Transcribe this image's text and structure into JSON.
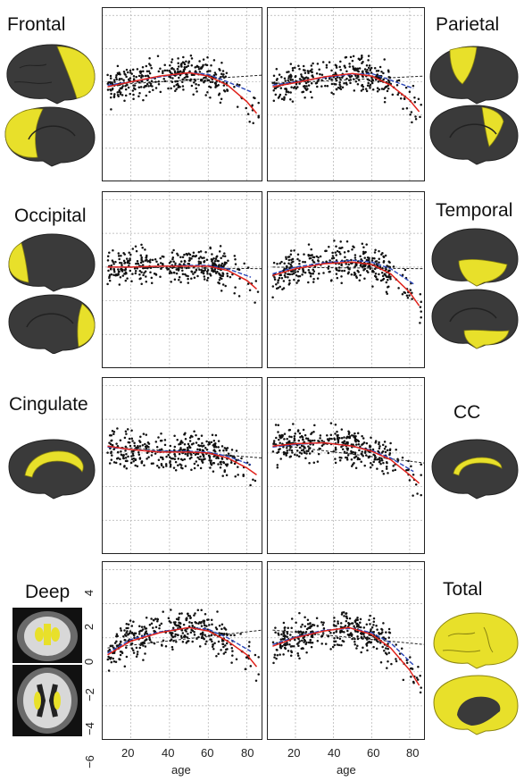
{
  "figure": {
    "regions": [
      {
        "id": "frontal",
        "label": "Frontal",
        "side": "left"
      },
      {
        "id": "parietal",
        "label": "Parietal",
        "side": "right"
      },
      {
        "id": "occipital",
        "label": "Occipital",
        "side": "left"
      },
      {
        "id": "temporal",
        "label": "Temporal",
        "side": "right"
      },
      {
        "id": "cingulate",
        "label": "Cingulate",
        "side": "left"
      },
      {
        "id": "cc",
        "label": "CC",
        "side": "right"
      },
      {
        "id": "deep",
        "label": "Deep",
        "side": "left"
      },
      {
        "id": "total",
        "label": "Total",
        "side": "right"
      }
    ],
    "colors": {
      "brain_dark": "#3a3a3a",
      "brain_highlight": "#e8e02a",
      "fit_red": "#e0231c",
      "fit_blue": "#2b46b8",
      "fit_linear": "#222222",
      "points": "#111111",
      "grid": "#b0b0b0"
    }
  },
  "chart_data": {
    "type": "scatter",
    "xlabel": "age",
    "ylabel": "",
    "xlim": [
      5,
      88
    ],
    "ylim": [
      -6,
      4.5
    ],
    "xticks": [
      "20",
      "40",
      "60",
      "80"
    ],
    "yticks": [
      "4",
      "2",
      "0",
      "−2",
      "−4",
      "−6"
    ],
    "grid": true,
    "panels": [
      {
        "region": "Frontal",
        "col": "left",
        "row": 1,
        "fit_red": [
          [
            8,
            -0.3
          ],
          [
            20,
            0.0
          ],
          [
            35,
            0.35
          ],
          [
            50,
            0.55
          ],
          [
            60,
            0.35
          ],
          [
            70,
            -0.2
          ],
          [
            80,
            -1.2
          ],
          [
            85,
            -1.9
          ]
        ],
        "fit_blue": [
          [
            8,
            -0.2
          ],
          [
            20,
            0.0
          ],
          [
            35,
            0.3
          ],
          [
            50,
            0.55
          ],
          [
            60,
            0.45
          ],
          [
            70,
            0.0
          ],
          [
            82,
            -0.6
          ]
        ],
        "fit_linear": [
          [
            8,
            -0.2
          ],
          [
            88,
            0.4
          ]
        ]
      },
      {
        "region": "Parietal",
        "col": "right",
        "row": 1,
        "fit_red": [
          [
            8,
            -0.3
          ],
          [
            20,
            -0.05
          ],
          [
            35,
            0.3
          ],
          [
            50,
            0.5
          ],
          [
            60,
            0.35
          ],
          [
            70,
            -0.2
          ],
          [
            80,
            -1.1
          ],
          [
            85,
            -1.8
          ]
        ],
        "fit_blue": [
          [
            8,
            -0.2
          ],
          [
            20,
            0.0
          ],
          [
            35,
            0.25
          ],
          [
            50,
            0.45
          ],
          [
            60,
            0.5
          ],
          [
            70,
            0.1
          ],
          [
            82,
            -0.4
          ]
        ],
        "fit_linear": [
          [
            8,
            -0.1
          ],
          [
            88,
            0.35
          ]
        ]
      },
      {
        "region": "Occipital",
        "col": "left",
        "row": 2,
        "fit_red": [
          [
            8,
            0.0
          ],
          [
            20,
            0.0
          ],
          [
            35,
            0.05
          ],
          [
            50,
            0.05
          ],
          [
            60,
            0.05
          ],
          [
            70,
            -0.2
          ],
          [
            80,
            -0.8
          ],
          [
            85,
            -1.3
          ]
        ],
        "fit_blue": [
          [
            8,
            0.0
          ],
          [
            20,
            0.0
          ],
          [
            35,
            0.05
          ],
          [
            50,
            0.1
          ],
          [
            60,
            0.1
          ],
          [
            70,
            -0.1
          ],
          [
            82,
            -0.6
          ]
        ],
        "fit_linear": [
          [
            8,
            0.0
          ],
          [
            88,
            -0.1
          ]
        ]
      },
      {
        "region": "Temporal",
        "col": "right",
        "row": 2,
        "fit_red": [
          [
            8,
            -0.5
          ],
          [
            20,
            -0.1
          ],
          [
            35,
            0.2
          ],
          [
            50,
            0.3
          ],
          [
            60,
            0.15
          ],
          [
            70,
            -0.4
          ],
          [
            80,
            -1.5
          ],
          [
            85,
            -2.3
          ]
        ],
        "fit_blue": [
          [
            8,
            -0.4
          ],
          [
            20,
            0.0
          ],
          [
            35,
            0.25
          ],
          [
            50,
            0.4
          ],
          [
            60,
            0.3
          ],
          [
            70,
            -0.1
          ],
          [
            82,
            -1.0
          ]
        ],
        "fit_linear": [
          [
            8,
            0.0
          ],
          [
            88,
            -0.1
          ]
        ]
      },
      {
        "region": "Cingulate",
        "col": "left",
        "row": 3,
        "fit_red": [
          [
            8,
            0.4
          ],
          [
            20,
            0.2
          ],
          [
            35,
            0.05
          ],
          [
            50,
            0.05
          ],
          [
            60,
            0.0
          ],
          [
            70,
            -0.3
          ],
          [
            80,
            -0.9
          ],
          [
            85,
            -1.3
          ]
        ],
        "fit_blue": [
          [
            8,
            0.35
          ],
          [
            20,
            0.2
          ],
          [
            35,
            0.1
          ],
          [
            50,
            0.1
          ],
          [
            60,
            0.05
          ],
          [
            70,
            -0.2
          ],
          [
            82,
            -0.7
          ]
        ],
        "fit_linear": [
          [
            8,
            0.4
          ],
          [
            88,
            -0.3
          ]
        ]
      },
      {
        "region": "CC",
        "col": "right",
        "row": 3,
        "fit_red": [
          [
            8,
            0.4
          ],
          [
            20,
            0.55
          ],
          [
            35,
            0.6
          ],
          [
            50,
            0.4
          ],
          [
            60,
            0.1
          ],
          [
            70,
            -0.4
          ],
          [
            80,
            -1.3
          ],
          [
            85,
            -1.8
          ]
        ],
        "fit_blue": [
          [
            8,
            0.35
          ],
          [
            20,
            0.5
          ],
          [
            35,
            0.6
          ],
          [
            50,
            0.4
          ],
          [
            60,
            0.15
          ],
          [
            70,
            -0.3
          ],
          [
            82,
            -1.1
          ]
        ],
        "fit_linear": [
          [
            8,
            0.5
          ],
          [
            88,
            -0.6
          ]
        ]
      },
      {
        "region": "Deep",
        "col": "left",
        "row": 4,
        "fit_red": [
          [
            8,
            -1.0
          ],
          [
            20,
            -0.2
          ],
          [
            35,
            0.3
          ],
          [
            50,
            0.6
          ],
          [
            60,
            0.4
          ],
          [
            70,
            -0.2
          ],
          [
            80,
            -1.0
          ],
          [
            85,
            -1.7
          ]
        ],
        "fit_blue": [
          [
            8,
            -0.9
          ],
          [
            20,
            -0.1
          ],
          [
            35,
            0.35
          ],
          [
            50,
            0.6
          ],
          [
            60,
            0.5
          ],
          [
            70,
            0.0
          ],
          [
            82,
            -0.8
          ]
        ],
        "fit_linear": [
          [
            8,
            -0.6
          ],
          [
            88,
            0.45
          ]
        ]
      },
      {
        "region": "Total",
        "col": "right",
        "row": 4,
        "fit_red": [
          [
            8,
            -0.5
          ],
          [
            20,
            0.0
          ],
          [
            35,
            0.4
          ],
          [
            48,
            0.6
          ],
          [
            60,
            0.2
          ],
          [
            70,
            -0.6
          ],
          [
            80,
            -1.9
          ],
          [
            85,
            -2.8
          ]
        ],
        "fit_blue": [
          [
            8,
            -0.4
          ],
          [
            20,
            0.05
          ],
          [
            35,
            0.45
          ],
          [
            50,
            0.55
          ],
          [
            60,
            0.3
          ],
          [
            70,
            -0.3
          ],
          [
            82,
            -1.6
          ]
        ],
        "fit_linear": [
          [
            8,
            0.45
          ],
          [
            88,
            -0.4
          ]
        ]
      }
    ]
  }
}
